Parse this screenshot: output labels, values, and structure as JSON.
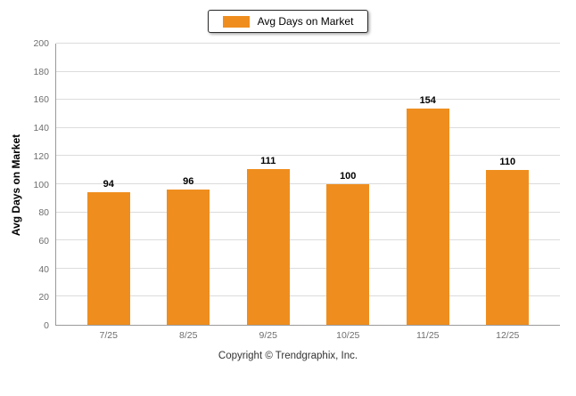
{
  "footer": {
    "text": "Copyright © Trendgraphix, Inc."
  },
  "chart_data": {
    "type": "bar",
    "title": "",
    "categories": [
      "7/25",
      "8/25",
      "9/25",
      "10/25",
      "11/25",
      "12/25"
    ],
    "values": [
      94,
      96,
      111,
      100,
      154,
      110
    ],
    "xlabel": "",
    "ylabel": "Avg Days on Market",
    "ylim": [
      0,
      200
    ],
    "ytick_step": 20,
    "grid": true,
    "legend_label": "Avg Days on Market",
    "legend_position": "top-center",
    "bar_color": "#EF8E1E"
  }
}
